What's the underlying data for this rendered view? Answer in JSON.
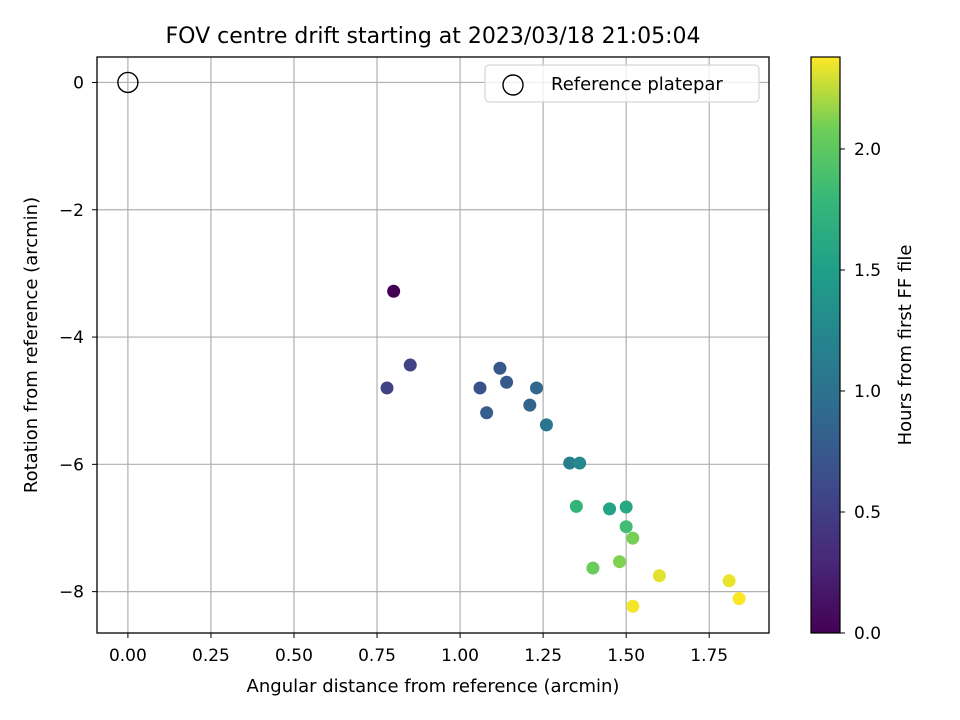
{
  "chart_data": {
    "type": "scatter",
    "title": "FOV centre drift starting at 2023/03/18 21:05:04",
    "xlabel": "Angular distance from reference (arcmin)",
    "ylabel": "Rotation from reference (arcmin)",
    "xlim": [
      -0.093,
      1.93
    ],
    "ylim": [
      -8.65,
      0.4
    ],
    "xticks": [
      0.0,
      0.25,
      0.5,
      0.75,
      1.0,
      1.25,
      1.5,
      1.75
    ],
    "xtick_labels": [
      "0.00",
      "0.25",
      "0.50",
      "0.75",
      "1.00",
      "1.25",
      "1.50",
      "1.75"
    ],
    "yticks": [
      0,
      -2,
      -4,
      -6,
      -8
    ],
    "ytick_labels": [
      "0",
      "−2",
      "−4",
      "−6",
      "−8"
    ],
    "grid": true,
    "legend": {
      "placement": "top-right",
      "entries": [
        {
          "label": "Reference platepar",
          "marker": "open-circle",
          "x": 0.0,
          "y": 0.0
        }
      ]
    },
    "colorbar": {
      "label": "Hours from first FF file",
      "colormap": "viridis",
      "range": [
        0.0,
        2.38
      ],
      "ticks": [
        0.0,
        0.5,
        1.0,
        1.5,
        2.0
      ],
      "tick_labels": [
        "0.0",
        "0.5",
        "1.0",
        "1.5",
        "2.0"
      ]
    },
    "points": [
      {
        "x": 0.8,
        "y": -3.28,
        "c": 0.0
      },
      {
        "x": 0.78,
        "y": -4.8,
        "c": 0.52
      },
      {
        "x": 0.85,
        "y": -4.44,
        "c": 0.55
      },
      {
        "x": 1.06,
        "y": -4.8,
        "c": 0.7
      },
      {
        "x": 1.12,
        "y": -4.49,
        "c": 0.73
      },
      {
        "x": 1.14,
        "y": -4.71,
        "c": 0.76
      },
      {
        "x": 1.08,
        "y": -5.19,
        "c": 0.8
      },
      {
        "x": 1.21,
        "y": -5.07,
        "c": 0.85
      },
      {
        "x": 1.23,
        "y": -4.8,
        "c": 0.88
      },
      {
        "x": 1.26,
        "y": -5.38,
        "c": 1.05
      },
      {
        "x": 1.33,
        "y": -5.98,
        "c": 1.15
      },
      {
        "x": 1.36,
        "y": -5.98,
        "c": 1.25
      },
      {
        "x": 1.35,
        "y": -6.66,
        "c": 1.75
      },
      {
        "x": 1.45,
        "y": -6.7,
        "c": 1.55
      },
      {
        "x": 1.5,
        "y": -6.67,
        "c": 1.6
      },
      {
        "x": 1.5,
        "y": -6.98,
        "c": 1.85
      },
      {
        "x": 1.52,
        "y": -7.16,
        "c": 2.1
      },
      {
        "x": 1.4,
        "y": -7.63,
        "c": 2.05
      },
      {
        "x": 1.48,
        "y": -7.53,
        "c": 2.12
      },
      {
        "x": 1.6,
        "y": -7.75,
        "c": 2.32
      },
      {
        "x": 1.52,
        "y": -8.23,
        "c": 2.36
      },
      {
        "x": 1.81,
        "y": -7.83,
        "c": 2.34
      },
      {
        "x": 1.84,
        "y": -8.11,
        "c": 2.38
      }
    ]
  }
}
